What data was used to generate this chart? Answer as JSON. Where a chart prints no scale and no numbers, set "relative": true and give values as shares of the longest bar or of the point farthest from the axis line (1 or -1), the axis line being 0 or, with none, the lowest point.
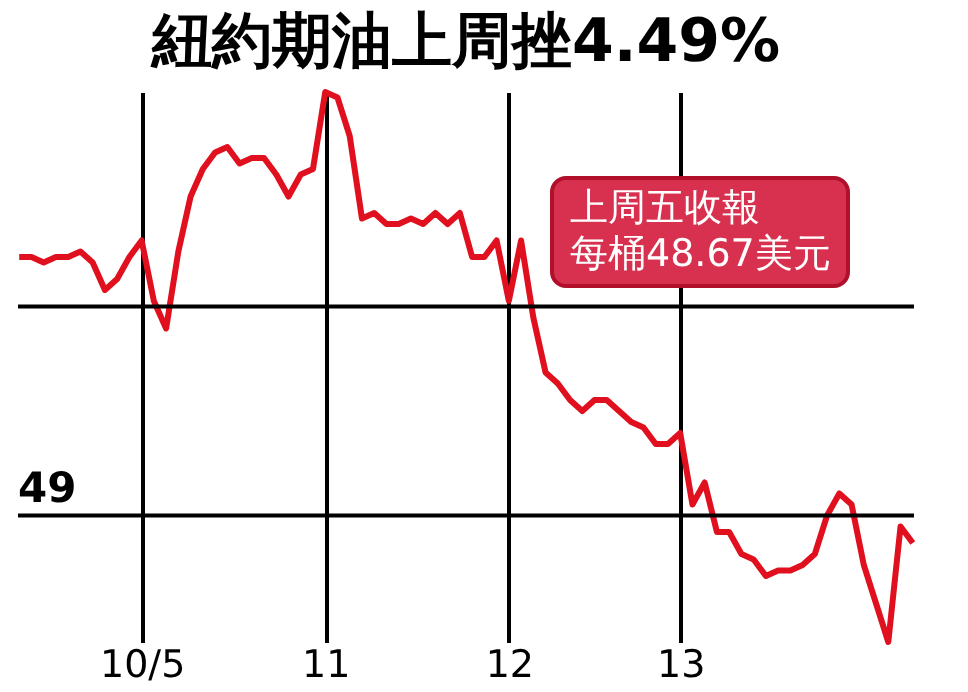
{
  "chart_data": {
    "type": "line",
    "title": "紐約期油上周挫4.49%",
    "relative": true,
    "categories": [
      null,
      null,
      null,
      null,
      null,
      null,
      null,
      null,
      null,
      null,
      "10/5",
      null,
      null,
      null,
      null,
      null,
      null,
      null,
      null,
      null,
      null,
      null,
      null,
      null,
      null,
      "11",
      null,
      null,
      null,
      null,
      null,
      null,
      null,
      null,
      null,
      null,
      null,
      null,
      null,
      null,
      "12",
      null,
      null,
      null,
      null,
      null,
      null,
      null,
      null,
      null,
      null,
      null,
      null,
      null,
      "13",
      null,
      null,
      null,
      null,
      null,
      null,
      null,
      null,
      null,
      null,
      null,
      null,
      null,
      null,
      null,
      null,
      null,
      null,
      null
    ],
    "series": [
      {
        "color": "#e0101e",
        "values": [
          0.7,
          0.7,
          0.69,
          0.7,
          0.7,
          0.71,
          0.69,
          0.64,
          0.66,
          0.7,
          0.73,
          0.62,
          0.57,
          0.71,
          0.81,
          0.86,
          0.89,
          0.9,
          0.87,
          0.88,
          0.88,
          0.85,
          0.81,
          0.85,
          0.86,
          1,
          0.99,
          0.92,
          0.77,
          0.78,
          0.76,
          0.76,
          0.77,
          0.76,
          0.78,
          0.76,
          0.78,
          0.7,
          0.7,
          0.73,
          0.62,
          0.73,
          0.59,
          0.49,
          0.47,
          0.44,
          0.42,
          0.44,
          0.44,
          0.42,
          0.4,
          0.39,
          0.36,
          0.36,
          0.38,
          0.25,
          0.29,
          0.2,
          0.2,
          0.16,
          0.15,
          0.12,
          0.13,
          0.13,
          0.14,
          0.16,
          0.23,
          0.27,
          0.25,
          0.14,
          0.07,
          0,
          0.21,
          0.18
        ]
      }
    ],
    "ref_lines": [
      {
        "axis": "y",
        "value": 0.23,
        "color": "#000000"
      },
      {
        "axis": "y",
        "value": 0.61,
        "color": "#000000"
      }
    ],
    "grid": "x",
    "annotations": [
      "上周五收報",
      "每桶48.67美元",
      "49"
    ]
  }
}
